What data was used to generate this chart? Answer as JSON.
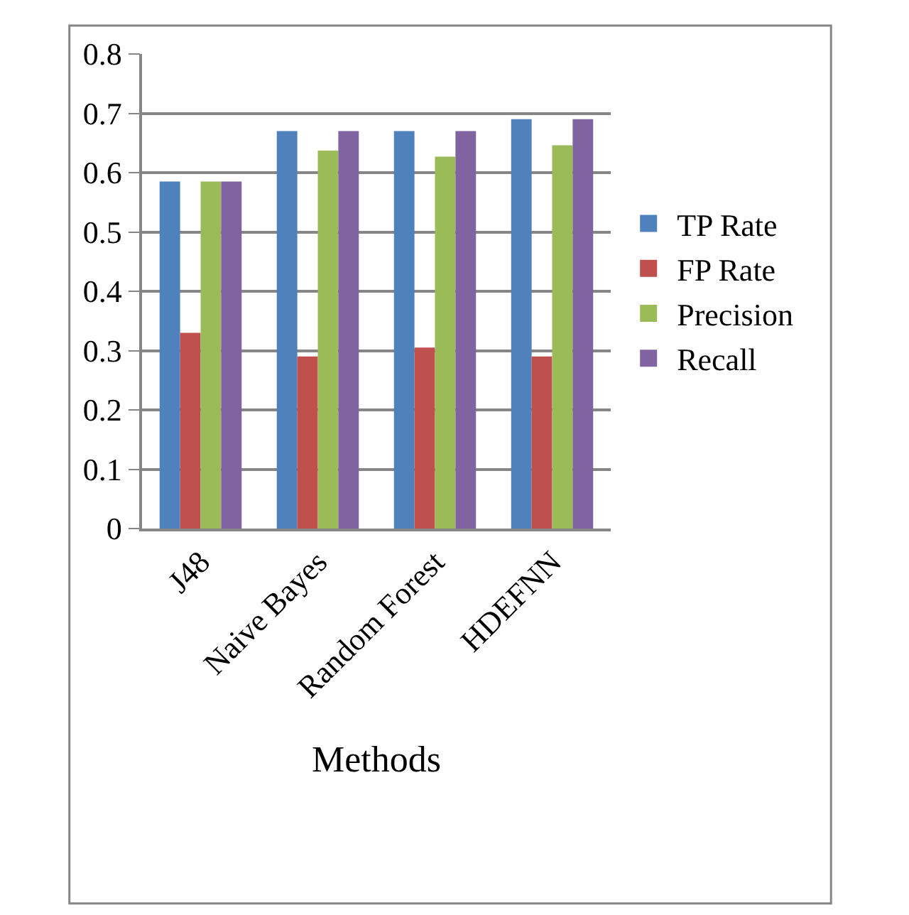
{
  "chart_data": {
    "type": "bar",
    "xlabel": "Methods",
    "categories": [
      "J48",
      "Naive Bayes",
      "Random Forest",
      "HDEFNN"
    ],
    "series": [
      {
        "name": "TP Rate",
        "color": "#4f81bd",
        "values": [
          0.585,
          0.67,
          0.67,
          0.69
        ]
      },
      {
        "name": "FP Rate",
        "color": "#c0504d",
        "values": [
          0.33,
          0.29,
          0.305,
          0.29
        ]
      },
      {
        "name": "Precision",
        "color": "#9bbb59",
        "values": [
          0.585,
          0.637,
          0.627,
          0.646
        ]
      },
      {
        "name": "Recall",
        "color": "#8064a2",
        "values": [
          0.585,
          0.67,
          0.67,
          0.69
        ]
      }
    ],
    "ylim": [
      0,
      0.8
    ],
    "yticks": [
      0,
      0.1,
      0.2,
      0.3,
      0.4,
      0.5,
      0.6,
      0.7,
      0.8
    ],
    "grid": "y",
    "legend": "right"
  }
}
